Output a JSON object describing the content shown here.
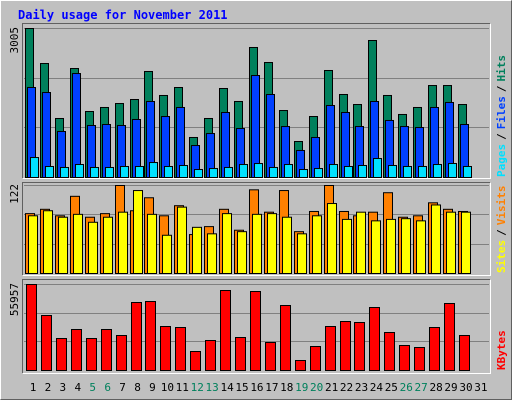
{
  "title": "Daily usage for November 2011",
  "legend_separator": "/",
  "categories": [
    "1",
    "2",
    "3",
    "4",
    "5",
    "6",
    "7",
    "8",
    "9",
    "10",
    "11",
    "12",
    "13",
    "14",
    "15",
    "16",
    "17",
    "18",
    "19",
    "20",
    "21",
    "22",
    "23",
    "24",
    "25",
    "26",
    "27",
    "28",
    "29",
    "30",
    "31"
  ],
  "weekend": [
    false,
    false,
    false,
    false,
    true,
    true,
    false,
    false,
    false,
    false,
    false,
    true,
    true,
    false,
    false,
    false,
    false,
    false,
    true,
    true,
    false,
    false,
    false,
    false,
    false,
    true,
    true,
    false,
    false,
    false,
    false
  ],
  "weekday_color": "#000000",
  "weekend_color": "#00805c",
  "chart_data": [
    {
      "type": "bar",
      "ylim": [
        0,
        3005
      ],
      "yticks": [
        3005
      ],
      "grid": true,
      "series": [
        {
          "name": "Hits",
          "color": "#00805c",
          "values": [
            3005,
            2299,
            1190,
            2198,
            1331,
            1412,
            1492,
            1573,
            2138,
            1654,
            1815,
            807,
            1190,
            1795,
            1533,
            2622,
            2319,
            1351,
            726,
            1230,
            2158,
            1674,
            1472,
            2763,
            1654,
            1271,
            1412,
            1855,
            1855,
            1472,
            null
          ]
        },
        {
          "name": "Files",
          "color": "#0040ff",
          "values": [
            1815,
            1714,
            928,
            2097,
            1049,
            1069,
            1049,
            1170,
            1533,
            1230,
            1412,
            645,
            887,
            1311,
            988,
            2057,
            1674,
            1028,
            545,
            807,
            1452,
            1311,
            1028,
            1533,
            1150,
            1028,
            1008,
            1412,
            1513,
            1069,
            null
          ]
        },
        {
          "name": "Pages",
          "color": "#00e0ff",
          "values": [
            403,
            222,
            202,
            262,
            202,
            202,
            222,
            222,
            302,
            222,
            242,
            161,
            181,
            202,
            262,
            282,
            202,
            262,
            161,
            181,
            262,
            222,
            242,
            383,
            242,
            222,
            222,
            262,
            282,
            222,
            null
          ]
        }
      ]
    },
    {
      "type": "bar",
      "ylim": [
        0,
        122
      ],
      "yticks": [
        122
      ],
      "grid": true,
      "series": [
        {
          "name": "Visits",
          "color": "#ff8000",
          "values": [
            83,
            89,
            80,
            107,
            78,
            83,
            122,
            87,
            105,
            80,
            94,
            54,
            65,
            89,
            60,
            116,
            85,
            115,
            58,
            86,
            122,
            86,
            80,
            85,
            112,
            78,
            80,
            98,
            89,
            86,
            null
          ]
        },
        {
          "name": "Sites",
          "color": "#ffff00",
          "values": [
            80,
            87,
            78,
            82,
            71,
            78,
            85,
            115,
            82,
            53,
            92,
            64,
            55,
            83,
            58,
            82,
            83,
            78,
            55,
            80,
            97,
            75,
            85,
            73,
            75,
            76,
            73,
            95,
            85,
            85,
            null
          ]
        }
      ]
    },
    {
      "type": "bar",
      "ylim": [
        0,
        55957
      ],
      "yticks": [
        55957
      ],
      "grid": true,
      "series": [
        {
          "name": "KBytes",
          "color": "#ff0000",
          "values": [
            55957,
            35786,
            20821,
            26677,
            20821,
            26677,
            22773,
            44245,
            44896,
            28629,
            27978,
            12363,
            19520,
            52053,
            21472,
            51402,
            18219,
            42293,
            6507,
            15616,
            28629,
            31883,
            31232,
            40992,
            24725,
            16267,
            14965,
            27978,
            43594,
            22773,
            null
          ]
        }
      ]
    }
  ]
}
